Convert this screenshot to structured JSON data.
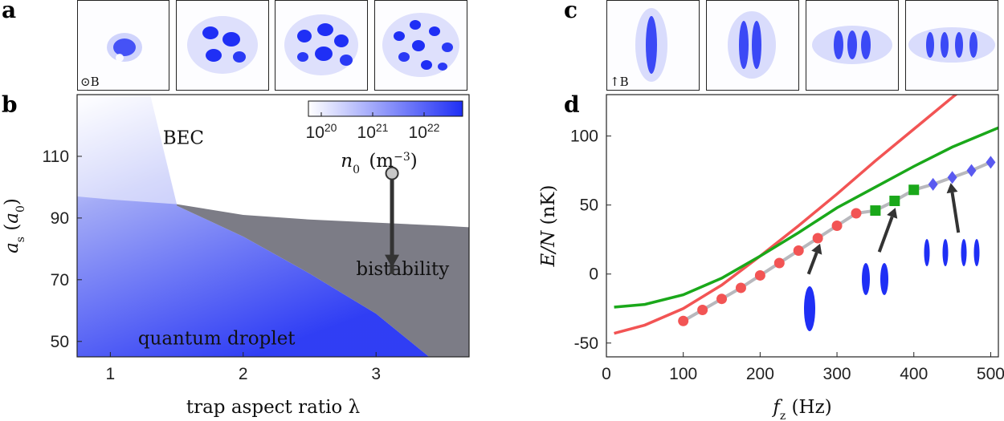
{
  "panels": {
    "a": {
      "letter": "a",
      "caption": "⊙B"
    },
    "b": {
      "letter": "b"
    },
    "c": {
      "letter": "c",
      "caption": "↑B"
    },
    "d": {
      "letter": "d"
    }
  },
  "colors": {
    "blue": "#1f2ff5",
    "gray_region": "#7c7c86",
    "red": "#f25454",
    "green": "#1aa81a",
    "marker_blue": "#5a5af0",
    "connector": "#b8b8bd",
    "arrow": "#333333"
  },
  "chart_data": [
    {
      "type": "area",
      "panel": "b",
      "xlabel": "trap aspect ratio λ",
      "ylabel": "a_s (a_0)",
      "xlim": [
        0.75,
        3.7
      ],
      "ylim": [
        45,
        130
      ],
      "xticks": [
        "1",
        "2",
        "3"
      ],
      "yticks": [
        "50",
        "70",
        "90",
        "110"
      ],
      "regions": [
        {
          "label": "BEC"
        },
        {
          "label": "bistability"
        },
        {
          "label": "quantum droplet"
        }
      ],
      "droplet_boundary": {
        "x": [
          0.75,
          1.0,
          1.5,
          2.0,
          2.5,
          3.0,
          3.4
        ],
        "y": [
          97,
          96,
          94,
          84,
          72,
          59,
          45
        ]
      },
      "bistability_upper": {
        "x": [
          1.5,
          2.0,
          2.5,
          3.0,
          3.5,
          3.7
        ],
        "y": [
          94.5,
          91,
          89.5,
          88.5,
          87.5,
          87
        ]
      },
      "arrow": {
        "x": 3.12,
        "y_start": 104.5,
        "y_end": 75
      },
      "colorbar": {
        "label": "n_0 (m^-3)",
        "ticks": [
          "10^20",
          "10^21",
          "10^22"
        ]
      }
    },
    {
      "type": "line",
      "panel": "d",
      "xlabel": "f_z (Hz)",
      "ylabel": "E/N (nK)",
      "xlim": [
        0,
        510
      ],
      "ylim": [
        -60,
        130
      ],
      "xticks": [
        "0",
        "100",
        "200",
        "300",
        "400",
        "500"
      ],
      "yticks": [
        "-50",
        "0",
        "50",
        "100"
      ],
      "series": [
        {
          "color": "red",
          "x": [
            10,
            50,
            100,
            150,
            200,
            250,
            300,
            350,
            400,
            450,
            500
          ],
          "y": [
            -43,
            -37,
            -25,
            -8,
            13,
            35,
            58,
            82,
            105,
            128,
            150
          ]
        },
        {
          "color": "green",
          "x": [
            10,
            50,
            100,
            150,
            200,
            250,
            300,
            350,
            400,
            450,
            510
          ],
          "y": [
            -24,
            -22,
            -15,
            -3,
            13,
            30,
            48,
            63,
            78,
            92,
            106
          ]
        },
        {
          "color": "red",
          "marker": "circle",
          "x": [
            100,
            125,
            150,
            175,
            200,
            225,
            250,
            275,
            300,
            325
          ],
          "y": [
            -34,
            -26,
            -18,
            -10,
            -1,
            8,
            17,
            26,
            35,
            44
          ]
        },
        {
          "color": "green",
          "marker": "square",
          "x": [
            350,
            375,
            400
          ],
          "y": [
            46,
            53,
            61
          ]
        },
        {
          "color": "blue",
          "marker": "diamond",
          "x": [
            425,
            450,
            475,
            500
          ],
          "y": [
            65,
            70,
            75,
            81
          ]
        }
      ],
      "arrows": [
        {
          "x_start": 263,
          "y_start": 0,
          "x_end": 278,
          "y_end": 22
        },
        {
          "x_start": 355,
          "y_start": 16,
          "x_end": 376,
          "y_end": 48
        },
        {
          "x_start": 458,
          "y_start": 30,
          "x_end": 448,
          "y_end": 66
        }
      ]
    }
  ]
}
